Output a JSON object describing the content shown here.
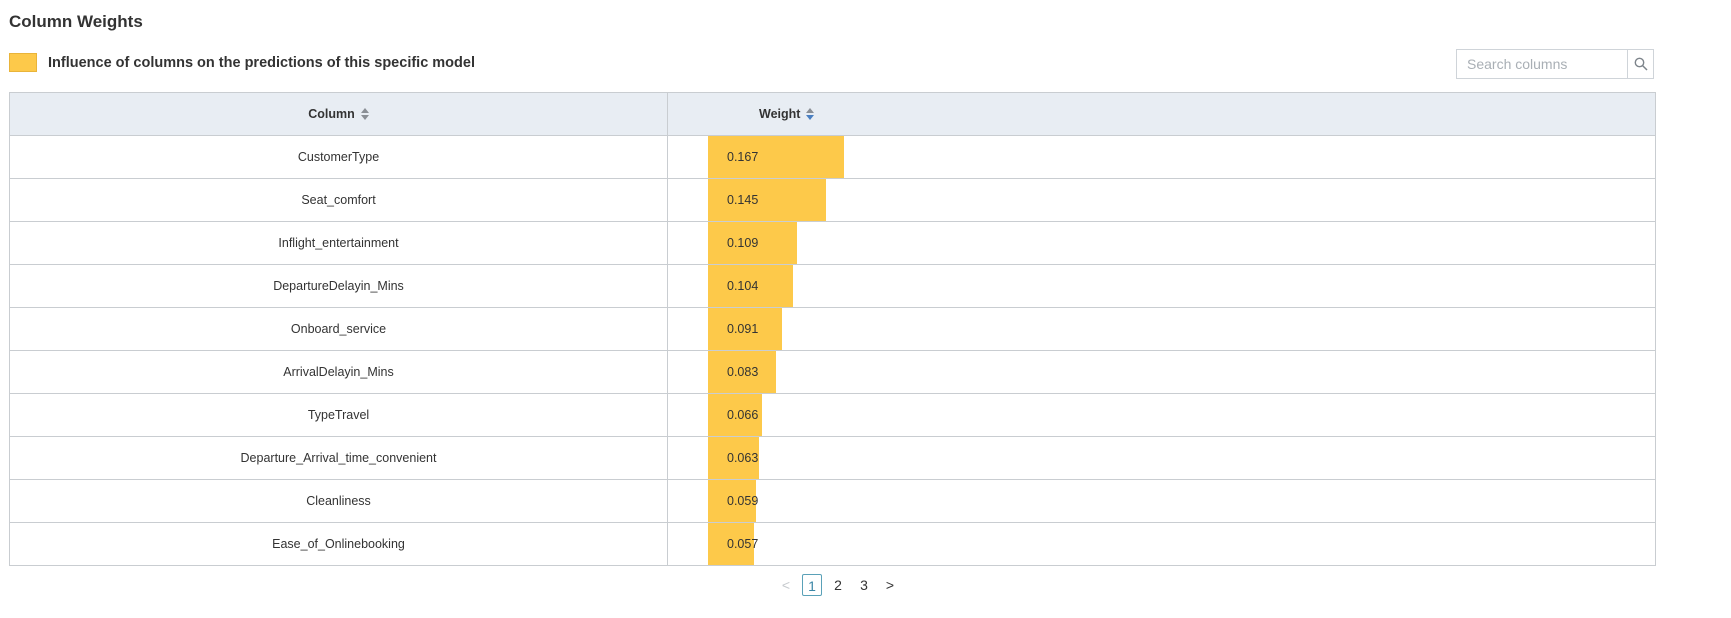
{
  "page": {
    "title": "Column Weights",
    "legend_label": "Influence of columns on the predictions of this specific model",
    "legend_color": "#fdc94a"
  },
  "search": {
    "placeholder": "Search columns",
    "value": ""
  },
  "table": {
    "headers": {
      "column": "Column",
      "weight": "Weight"
    },
    "sorted_by": "weight",
    "max_weight": 0.167,
    "rows": [
      {
        "column": "CustomerType",
        "weight": "0.167"
      },
      {
        "column": "Seat_comfort",
        "weight": "0.145"
      },
      {
        "column": "Inflight_entertainment",
        "weight": "0.109"
      },
      {
        "column": "DepartureDelayin_Mins",
        "weight": "0.104"
      },
      {
        "column": "Onboard_service",
        "weight": "0.091"
      },
      {
        "column": "ArrivalDelayin_Mins",
        "weight": "0.083"
      },
      {
        "column": "TypeTravel",
        "weight": "0.066"
      },
      {
        "column": "Departure_Arrival_time_convenient",
        "weight": "0.063"
      },
      {
        "column": "Cleanliness",
        "weight": "0.059"
      },
      {
        "column": "Ease_of_Onlinebooking",
        "weight": "0.057"
      }
    ]
  },
  "pagination": {
    "prev": "<",
    "next": ">",
    "pages": [
      "1",
      "2",
      "3"
    ],
    "current": "1"
  }
}
